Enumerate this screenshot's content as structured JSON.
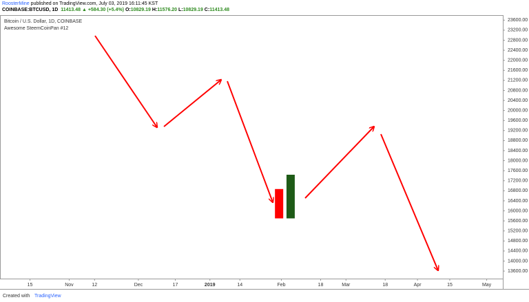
{
  "header": {
    "author": "RoosterMine",
    "published": "published on TradingView.com, July 03, 2019 16:11:45 KST",
    "symbol": "COINBASE:BTCUSD, 1D",
    "price": "11413.48",
    "change": "▲ +584.30 (+5.4%)",
    "ohlc": [
      {
        "label": "O:",
        "value": "10829.19"
      },
      {
        "label": "H:",
        "value": "11576.20"
      },
      {
        "label": "L:",
        "value": "10829.19"
      },
      {
        "label": "C:",
        "value": "11413.48"
      }
    ]
  },
  "chart_data": {
    "type": "candlestick",
    "title": "Bitcoin / U.S. Dollar, 1D, COINBASE",
    "subtitle": "Awesome SteemCoinPan #12",
    "xlim": [
      -13,
      205
    ],
    "xticks": [
      {
        "value": 0,
        "label": "15"
      },
      {
        "value": 17,
        "label": "Nov"
      },
      {
        "value": 28,
        "label": "12"
      },
      {
        "value": 47,
        "label": "Dec"
      },
      {
        "value": 63,
        "label": "17"
      },
      {
        "value": 78,
        "label": "2019"
      },
      {
        "value": 91,
        "label": "14"
      },
      {
        "value": 109,
        "label": "Feb"
      },
      {
        "value": 126,
        "label": "18"
      },
      {
        "value": 137,
        "label": "Mar"
      },
      {
        "value": 154,
        "label": "18"
      },
      {
        "value": 168,
        "label": "Apr"
      },
      {
        "value": 182,
        "label": "15"
      },
      {
        "value": 198,
        "label": "May"
      }
    ],
    "ylim": [
      13300,
      23800
    ],
    "yticks": [
      {
        "value": 13600,
        "label": "13600.00"
      },
      {
        "value": 14000,
        "label": "14000.00"
      },
      {
        "value": 14400,
        "label": "14400.00"
      },
      {
        "value": 14800,
        "label": "14800.00"
      },
      {
        "value": 15200,
        "label": "15200.00"
      },
      {
        "value": 15600,
        "label": "15600.00"
      },
      {
        "value": 16000,
        "label": "16000.00"
      },
      {
        "value": 16400,
        "label": "16400.00"
      },
      {
        "value": 16800,
        "label": "16800.00"
      },
      {
        "value": 17200,
        "label": "17200.00"
      },
      {
        "value": 17600,
        "label": "17600.00"
      },
      {
        "value": 18000,
        "label": "18000.00"
      },
      {
        "value": 18400,
        "label": "18400.00"
      },
      {
        "value": 18800,
        "label": "18800.00"
      },
      {
        "value": 19200,
        "label": "19200.00"
      },
      {
        "value": 19600,
        "label": "19600.00"
      },
      {
        "value": 20000,
        "label": "20000.00"
      },
      {
        "value": 20400,
        "label": "20400.00"
      },
      {
        "value": 20800,
        "label": "20800.00"
      },
      {
        "value": 21200,
        "label": "21200.00"
      },
      {
        "value": 21600,
        "label": "21600.00"
      },
      {
        "value": 22000,
        "label": "22000.00"
      },
      {
        "value": 22400,
        "label": "22400.00"
      },
      {
        "value": 22800,
        "label": "22800.00"
      },
      {
        "value": 23200,
        "label": "23200.00"
      },
      {
        "value": 23600,
        "label": "23600.00"
      }
    ],
    "x": [
      108,
      113
    ],
    "open": [
      16870,
      15700
    ],
    "close": [
      15700,
      17440
    ],
    "colors": [
      "#ff0000",
      "#1e5b17"
    ]
  },
  "footer": {
    "text": "Created with",
    "brand": "TradingView"
  }
}
